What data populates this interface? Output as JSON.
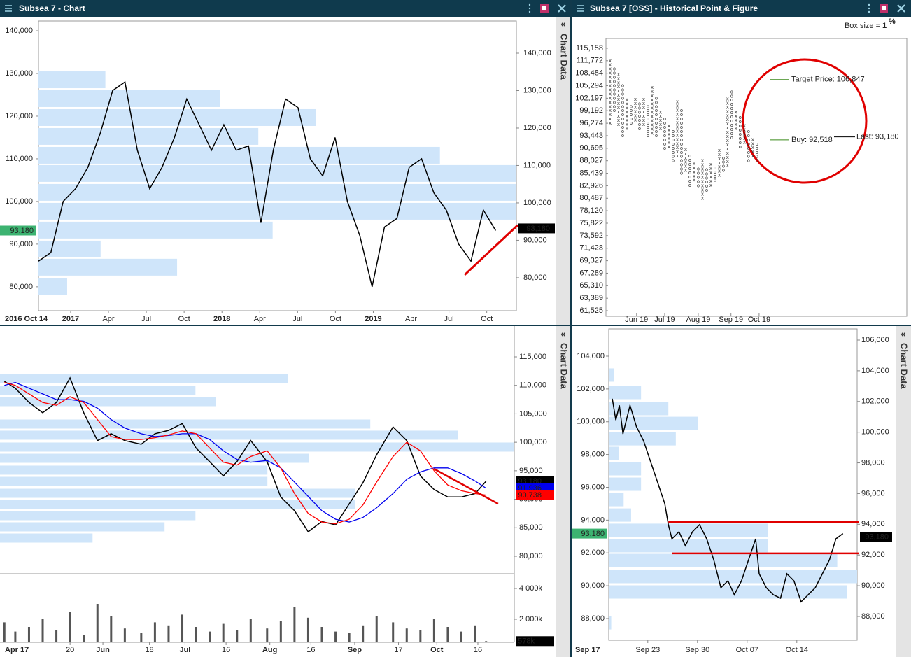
{
  "chart_main": {
    "title": "Subsea 7 - Chart",
    "tab": "Chart Data",
    "tab_icon": "«",
    "type": "line",
    "color": "#000000",
    "x": [
      0,
      0.98,
      1.96,
      2.94,
      3.92,
      4.9,
      5.88,
      6.86,
      7.84,
      8.82,
      9.8,
      10.78,
      11.76,
      12.74,
      13.72,
      14.7,
      15.68,
      16.66,
      17.64,
      18.62,
      19.6,
      20.58,
      21.56,
      22.54,
      23.52,
      24.5,
      25.48,
      26.46,
      27.44,
      28.42,
      29.4,
      30.38,
      31.36,
      32.34,
      33.32,
      34.3,
      35.28,
      36.26
    ],
    "values": [
      86000,
      88000,
      100000,
      103000,
      108000,
      116000,
      126000,
      128000,
      112000,
      103000,
      108000,
      115000,
      124000,
      118000,
      112000,
      118000,
      112000,
      113000,
      95000,
      112000,
      124000,
      122000,
      110000,
      106000,
      115000,
      100000,
      92000,
      80000,
      94000,
      96000,
      108000,
      110000,
      102000,
      98000,
      90000,
      86000,
      98000,
      93180
    ],
    "xlim": [
      0,
      37.9
    ],
    "start_label": "2016 Oct 14",
    "xticks": [
      {
        "value": 2.55,
        "label": "2017"
      },
      {
        "value": 5.55,
        "label": "Apr"
      },
      {
        "value": 8.55,
        "label": "Jul"
      },
      {
        "value": 11.55,
        "label": "Oct"
      },
      {
        "value": 14.55,
        "label": "2018"
      },
      {
        "value": 17.55,
        "label": "Apr"
      },
      {
        "value": 20.55,
        "label": "Jul"
      },
      {
        "value": 23.55,
        "label": "Oct"
      },
      {
        "value": 26.55,
        "label": "2019"
      },
      {
        "value": 29.55,
        "label": "Apr"
      },
      {
        "value": 32.55,
        "label": "Jul"
      },
      {
        "value": 35.55,
        "label": "Oct"
      }
    ],
    "major_xticks": [
      0,
      4,
      8
    ],
    "ylim_left": [
      74400,
      142300
    ],
    "yticks_left": [
      {
        "value": 80000,
        "label": "80,000"
      },
      {
        "value": 90000,
        "label": "90,000"
      },
      {
        "value": 100000,
        "label": "100,000"
      },
      {
        "value": 110000,
        "label": "110,000"
      },
      {
        "value": 120000,
        "label": "120,000"
      },
      {
        "value": 130000,
        "label": "130,000"
      },
      {
        "value": 140000,
        "label": "140,000"
      }
    ],
    "ylim_right": [
      71200,
      148600
    ],
    "yticks_right": [
      {
        "value": 80000,
        "label": "80,000"
      },
      {
        "value": 90000,
        "label": "90,000"
      },
      {
        "value": 100000,
        "label": "100,000"
      },
      {
        "value": 110000,
        "label": "110,000"
      },
      {
        "value": 120000,
        "label": "120,000"
      },
      {
        "value": 130000,
        "label": "130,000"
      },
      {
        "value": 140000,
        "label": "140,000"
      }
    ],
    "profile": {
      "color": "#cfe5fa",
      "prices": [
        80000,
        84590,
        88850,
        93280,
        97700,
        102130,
        106560,
        110820,
        115250,
        119670,
        124100,
        128520
      ],
      "volumes": [
        6,
        29,
        13,
        49,
        100,
        100,
        100,
        84,
        46,
        58,
        38,
        14
      ]
    },
    "trendline": {
      "color": "#e00000",
      "x": [
        33.8,
        38.0
      ],
      "y": [
        82790,
        94430
      ]
    },
    "last": {
      "value": 93180,
      "label": "93,180"
    }
  },
  "pnf": {
    "title": "Subsea 7 [OSS] - Historical Point & Figure",
    "box_size_label": "Box size = ",
    "box_size": 1,
    "box_size_unit": "%",
    "log_scale": true,
    "ylim": [
      60713,
      117870
    ],
    "yticks": [
      {
        "value": 115158,
        "label": "115,158"
      },
      {
        "value": 111772,
        "label": "111,772"
      },
      {
        "value": 108484,
        "label": "108,484"
      },
      {
        "value": 105294,
        "label": "105,294"
      },
      {
        "value": 102197,
        "label": "102,197"
      },
      {
        "value": 99192,
        "label": "99,192"
      },
      {
        "value": 96274,
        "label": "96,274"
      },
      {
        "value": 93443,
        "label": "93,443"
      },
      {
        "value": 90695,
        "label": "90,695"
      },
      {
        "value": 88027,
        "label": "88,027"
      },
      {
        "value": 85439,
        "label": "85,439"
      },
      {
        "value": 82926,
        "label": "82,926"
      },
      {
        "value": 80487,
        "label": "80,487"
      },
      {
        "value": 78120,
        "label": "78,120"
      },
      {
        "value": 75822,
        "label": "75,822"
      },
      {
        "value": 73592,
        "label": "73,592"
      },
      {
        "value": 71428,
        "label": "71,428"
      },
      {
        "value": 69327,
        "label": "69,327"
      },
      {
        "value": 67289,
        "label": "67,289"
      },
      {
        "value": 65310,
        "label": "65,310"
      },
      {
        "value": 63389,
        "label": "63,389"
      },
      {
        "value": 61525,
        "label": "61,525"
      }
    ],
    "xlim": [
      -1,
      70.7
    ],
    "xticks": [
      {
        "value": 6.3,
        "label": "Jun 19"
      },
      {
        "value": 13,
        "label": "Jul 19"
      },
      {
        "value": 21,
        "label": "Aug 19"
      },
      {
        "value": 28.8,
        "label": "Sep 19"
      },
      {
        "value": 35.5,
        "label": "Oct 19"
      }
    ],
    "symbols": {
      "x": "x",
      "o": "o"
    },
    "colors": {
      "x": "#555555",
      "o": "#e03030"
    },
    "columns": [
      {
        "type": "x",
        "low": 96274,
        "high": 111772
      },
      {
        "type": "o",
        "low": 99192,
        "high": 110000
      },
      {
        "type": "x",
        "low": 96000,
        "high": 108484
      },
      {
        "type": "o",
        "low": 93443,
        "high": 106000
      },
      {
        "type": "x",
        "low": 95000,
        "high": 102197
      },
      {
        "type": "o",
        "low": 96274,
        "high": 101000
      },
      {
        "type": "x",
        "low": 97000,
        "high": 102197
      },
      {
        "type": "o",
        "low": 95000,
        "high": 101000
      },
      {
        "type": "x",
        "low": 96000,
        "high": 102197
      },
      {
        "type": "o",
        "low": 93443,
        "high": 101000
      },
      {
        "type": "x",
        "low": 94000,
        "high": 105294
      },
      {
        "type": "o",
        "low": 93443,
        "high": 103000
      },
      {
        "type": "x",
        "low": 95000,
        "high": 99192
      },
      {
        "type": "o",
        "low": 90695,
        "high": 98000
      },
      {
        "type": "x",
        "low": 91000,
        "high": 96274
      },
      {
        "type": "o",
        "low": 88027,
        "high": 95000
      },
      {
        "type": "x",
        "low": 89000,
        "high": 102197
      },
      {
        "type": "o",
        "low": 85439,
        "high": 100000
      },
      {
        "type": "x",
        "low": 86000,
        "high": 90695
      },
      {
        "type": "o",
        "low": 83000,
        "high": 89000
      },
      {
        "type": "x",
        "low": 84000,
        "high": 88027
      },
      {
        "type": "o",
        "low": 82926,
        "high": 87000
      },
      {
        "type": "x",
        "low": 80487,
        "high": 88027
      },
      {
        "type": "o",
        "low": 82000,
        "high": 87000
      },
      {
        "type": "x",
        "low": 83000,
        "high": 88027
      },
      {
        "type": "o",
        "low": 84000,
        "high": 87000
      },
      {
        "type": "x",
        "low": 85000,
        "high": 90695
      },
      {
        "type": "o",
        "low": 86000,
        "high": 89000
      },
      {
        "type": "x",
        "low": 87000,
        "high": 102197
      },
      {
        "type": "o",
        "low": 93000,
        "high": 104000
      },
      {
        "type": "x",
        "low": 95000,
        "high": 99192
      },
      {
        "type": "o",
        "low": 91000,
        "high": 98000
      },
      {
        "type": "x",
        "low": 92000,
        "high": 96274
      },
      {
        "type": "o",
        "low": 88027,
        "high": 95000
      },
      {
        "type": "x",
        "low": 89000,
        "high": 93443
      },
      {
        "type": "o",
        "low": 88027,
        "high": 92000
      }
    ],
    "target": {
      "label": "Target Price: 106,847",
      "value": 106847,
      "color": "#3a8a1a"
    },
    "buy": {
      "label": "Buy: 92,518",
      "value": 92518,
      "color": "#3a8a1a"
    },
    "last": {
      "label": "Last: 93,180",
      "value": 93180,
      "color": "#000000"
    }
  },
  "daily": {
    "tab": "Chart Data",
    "tab_icon": "«",
    "type": "line",
    "x": [
      116,
      120,
      125,
      130,
      135,
      140,
      145,
      150,
      155,
      160,
      166,
      171,
      176,
      181,
      186,
      191,
      196,
      201,
      206,
      212,
      217,
      222,
      227,
      232,
      237,
      242,
      247,
      252,
      258,
      263,
      268,
      273,
      278,
      283,
      288,
      292
    ],
    "price": {
      "color": "#000000",
      "values": [
        110700,
        109500,
        107000,
        105200,
        107000,
        111300,
        105200,
        100300,
        101500,
        100300,
        99650,
        101500,
        102100,
        103300,
        99000,
        96600,
        94100,
        96600,
        100300,
        96600,
        90400,
        88000,
        84300,
        86100,
        85500,
        89200,
        92900,
        97800,
        102700,
        100300,
        94100,
        91700,
        90400,
        90400,
        91000,
        93180
      ],
      "last": {
        "value": 93180,
        "label": "93,180"
      }
    },
    "ma_fast": {
      "color": "#ff0000",
      "values": [
        110500,
        110000,
        108500,
        107000,
        106500,
        108000,
        107000,
        104000,
        101000,
        100500,
        100500,
        100800,
        101300,
        102000,
        101500,
        99000,
        96500,
        96000,
        97500,
        98500,
        95500,
        91000,
        87500,
        86000,
        85700,
        86500,
        89000,
        93000,
        97500,
        100000,
        98500,
        95000,
        92500,
        91500,
        91000,
        90738
      ],
      "last": {
        "value": 90738,
        "label": "90,738"
      }
    },
    "ma_slow": {
      "color": "#0000ee",
      "values": [
        110000,
        110500,
        109500,
        108500,
        107500,
        107500,
        107200,
        106000,
        104000,
        102500,
        101500,
        101000,
        101200,
        101500,
        101500,
        100500,
        98500,
        97000,
        96500,
        96800,
        95500,
        93000,
        90500,
        88000,
        86500,
        86000,
        86800,
        88500,
        91000,
        93500,
        94800,
        95500,
        95500,
        94500,
        93200,
        91936
      ],
      "last": {
        "value": 91936,
        "label": "91,936"
      }
    },
    "xlim": [
      114.4,
      302.3
    ],
    "start_label": "Apr 17",
    "xticks": [
      {
        "value": 140,
        "label": "20"
      },
      {
        "value": 152,
        "label": "Jun"
      },
      {
        "value": 169,
        "label": "18"
      },
      {
        "value": 182,
        "label": "Jul"
      },
      {
        "value": 197,
        "label": "16"
      },
      {
        "value": 213,
        "label": "Aug"
      },
      {
        "value": 228,
        "label": "16"
      },
      {
        "value": 244,
        "label": "Sep"
      },
      {
        "value": 260,
        "label": "17"
      },
      {
        "value": 274,
        "label": "Oct"
      },
      {
        "value": 289,
        "label": "16"
      }
    ],
    "major_xticks": [
      1,
      3,
      5,
      7,
      9
    ],
    "ylim": [
      77175,
      120280
    ],
    "yticks": [
      {
        "value": 80000,
        "label": "80,000"
      },
      {
        "value": 85000,
        "label": "85,000"
      },
      {
        "value": 90000,
        "label": "90,000"
      },
      {
        "value": 95000,
        "label": "95,000"
      },
      {
        "value": 100000,
        "label": "100,000"
      },
      {
        "value": 105000,
        "label": "105,000"
      },
      {
        "value": 110000,
        "label": "110,000"
      },
      {
        "value": 115000,
        "label": "115,000"
      }
    ],
    "volume": {
      "color": "#555555",
      "values": [
        1800000,
        1200000,
        1500000,
        2000000,
        1300000,
        2500000,
        1000000,
        3000000,
        2200000,
        1400000,
        1100000,
        1800000,
        1600000,
        2300000,
        1500000,
        1200000,
        1700000,
        1300000,
        2000000,
        1400000,
        1900000,
        2800000,
        2100000,
        1500000,
        1200000,
        1100000,
        1600000,
        2200000,
        1800000,
        1400000,
        1300000,
        2000000,
        1500000,
        1200000,
        1600000,
        578000
      ],
      "ylim": [
        500000,
        4864000
      ],
      "yticks": [
        {
          "value": 2000000,
          "label": "2 000k"
        },
        {
          "value": 4000000,
          "label": "4 000k"
        }
      ],
      "last": {
        "value": 578000,
        "label": "578k"
      }
    },
    "profile": {
      "color": "#cfe5fa",
      "prices": [
        111190,
        109100,
        107140,
        103210,
        101250,
        99160,
        97190,
        95110,
        93140,
        91050,
        89090,
        87120,
        85160,
        83190
      ],
      "volumes": [
        56,
        38,
        42,
        72,
        89,
        100,
        60,
        52,
        52,
        69,
        69,
        38,
        32,
        18
      ]
    },
    "trendline": {
      "color": "#e00000",
      "x": [
        272.9,
        296.4
      ],
      "y": [
        95350,
        89210
      ]
    }
  },
  "intraday": {
    "tab": "Chart Data",
    "tab_icon": "«",
    "type": "line",
    "color": "#000000",
    "x": [
      1,
      1.5,
      2,
      2.5,
      3.5,
      4.4,
      5.4,
      6.4,
      7.4,
      8.4,
      8.9,
      9.4,
      10.4,
      11.3,
      12.3,
      13.3,
      14.3,
      15.3,
      16.3,
      17.3,
      18.2,
      19.2,
      20.2,
      21.2,
      21.7,
      22.7,
      23.7,
      24.7,
      25.6,
      26.6,
      27.6,
      28.6,
      29.6,
      30.6,
      31.6,
      32.5,
      33.5
    ],
    "values": [
      101400,
      100100,
      101000,
      99260,
      101000,
      99700,
      98840,
      97560,
      96280,
      95000,
      93720,
      92860,
      93290,
      92440,
      93290,
      93720,
      92860,
      91580,
      89880,
      90300,
      89450,
      90300,
      91580,
      92860,
      90730,
      89880,
      89450,
      89240,
      90730,
      90300,
      89020,
      89450,
      89880,
      90730,
      91580,
      92860,
      93180
    ],
    "xlim": [
      0.5,
      35.5
    ],
    "start_label": "Sep 17",
    "xticks": [
      {
        "value": 6,
        "label": "Sep 23"
      },
      {
        "value": 13,
        "label": "Sep 30"
      },
      {
        "value": 20,
        "label": "Oct 07"
      },
      {
        "value": 27,
        "label": "Oct 14"
      }
    ],
    "ylim_left": [
      86677,
      105664
    ],
    "yticks_left": [
      {
        "value": 88000,
        "label": "88,000"
      },
      {
        "value": 90000,
        "label": "90,000"
      },
      {
        "value": 92000,
        "label": "92,000"
      },
      {
        "value": 94000,
        "label": "94,000"
      },
      {
        "value": 96000,
        "label": "96,000"
      },
      {
        "value": 98000,
        "label": "98,000"
      },
      {
        "value": 100000,
        "label": "100,000"
      },
      {
        "value": 102000,
        "label": "102,000"
      },
      {
        "value": 104000,
        "label": "104,000"
      }
    ],
    "ylim_right": [
      86450,
      106729
    ],
    "yticks_right": [
      {
        "value": 88000,
        "label": "88,000"
      },
      {
        "value": 90000,
        "label": "90,000"
      },
      {
        "value": 92000,
        "label": "92,000"
      },
      {
        "value": 94000,
        "label": "94,000"
      },
      {
        "value": 96000,
        "label": "96,000"
      },
      {
        "value": 98000,
        "label": "98,000"
      },
      {
        "value": 100000,
        "label": "100,000"
      },
      {
        "value": 102000,
        "label": "102,000"
      },
      {
        "value": 104000,
        "label": "104,000"
      },
      {
        "value": 106000,
        "label": "106,000"
      }
    ],
    "profile": {
      "color": "#cfe5fa",
      "prices": [
        102850,
        101780,
        100800,
        99900,
        98960,
        98070,
        97130,
        96190,
        95250,
        94310,
        93380,
        92440,
        91540,
        90560,
        89620,
        87740
      ],
      "volumes": [
        2,
        13,
        24,
        36,
        27,
        4,
        13,
        13,
        6,
        9,
        64,
        64,
        92,
        100,
        96,
        1
      ]
    },
    "levels": [
      {
        "color": "#e00000",
        "x": [
          8.9,
          35.8
        ],
        "y": [
          93890,
          93890
        ]
      },
      {
        "color": "#e00000",
        "x": [
          9.4,
          35.8
        ],
        "y": [
          91970,
          91970
        ]
      }
    ],
    "last": {
      "value": 93180,
      "label": "93,180"
    }
  }
}
